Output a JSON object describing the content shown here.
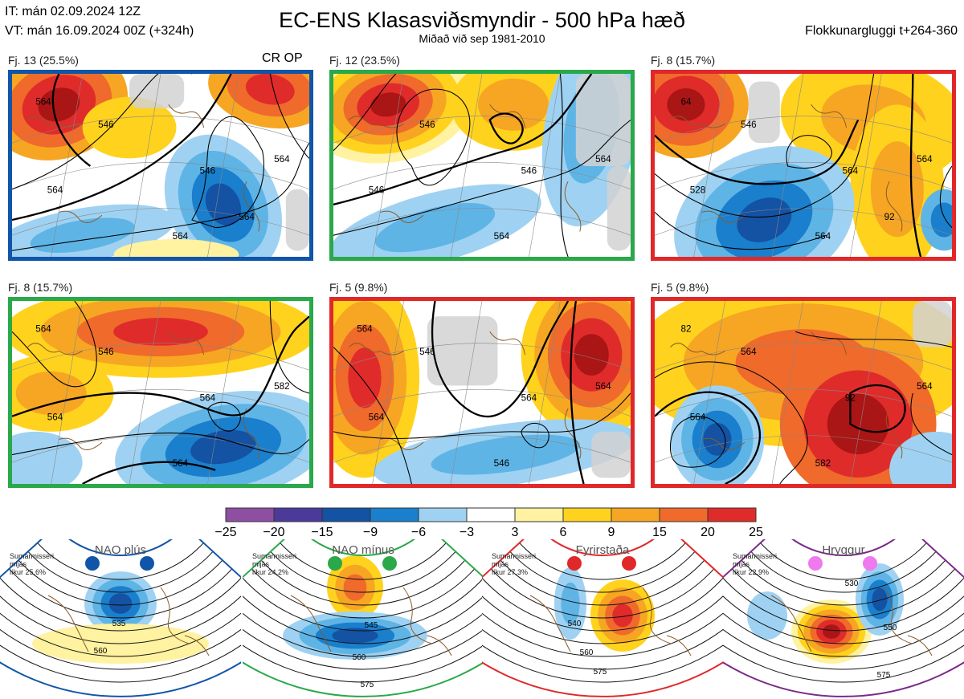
{
  "header": {
    "it_line": "IT: mán 02.09.2024 12Z",
    "vt_line": "VT: mán 16.09.2024 00Z  (+324h)",
    "title": "EC-ENS Klasasviðsmyndir - 500 hPa hæð",
    "subtitle": "Miðað við sep 1981-2010",
    "window": "Flokkunargluggi t+264-360"
  },
  "colors": {
    "scale": [
      "#8e4fa3",
      "#4c3a9a",
      "#1452a3",
      "#1a7fcc",
      "#5fb4e6",
      "#9fd2f2",
      "#ffffff",
      "#fff2a0",
      "#ffd21e",
      "#f6a623",
      "#ef6a2b",
      "#e02b2b",
      "#aa1515"
    ],
    "land": "#d2d2d2",
    "coast": "#8a5a2a"
  },
  "clusters": [
    {
      "label": "Fj. 13 (25.5%)",
      "tag": "CR OP",
      "border_color": "#1155a8",
      "contour_labels": [
        "564",
        "546",
        "564",
        "564",
        "546",
        "564",
        "564"
      ]
    },
    {
      "label": "Fj. 12 (23.5%)",
      "tag": "",
      "border_color": "#2aa84a",
      "contour_labels": [
        "546",
        "546",
        "564",
        "564",
        "546"
      ]
    },
    {
      "label": "Fj. 8 (15.7%)",
      "tag": "",
      "border_color": "#e0282a",
      "contour_labels": [
        "528",
        "546",
        "564",
        "564",
        "564",
        "64",
        "92"
      ]
    },
    {
      "label": "Fj. 8 (15.7%)",
      "tag": "",
      "border_color": "#2aa84a",
      "contour_labels": [
        "564",
        "546",
        "564",
        "582",
        "564",
        "564"
      ]
    },
    {
      "label": "Fj. 5 (9.8%)",
      "tag": "",
      "border_color": "#e0282a",
      "contour_labels": [
        "564",
        "546",
        "546",
        "564",
        "564",
        "564"
      ]
    },
    {
      "label": "Fj. 5 (9.8%)",
      "tag": "",
      "border_color": "#e0282a",
      "contour_labels": [
        "564",
        "564",
        "582",
        "564",
        "92",
        "82"
      ]
    }
  ],
  "colorbar": {
    "ticks": [
      "−25",
      "−20",
      "−15",
      "−9",
      "−6",
      "−3",
      "3",
      "6",
      "9",
      "15",
      "20",
      "25"
    ]
  },
  "regimes": [
    {
      "name": "NAO plús",
      "note": [
        "Sumarmisseri",
        "mijás",
        "líkur 25,6%"
      ],
      "color": "#1155a8",
      "dot_color": "#1155a8",
      "contour_labels": [
        "535",
        "560"
      ]
    },
    {
      "name": "NAO mínus",
      "note": [
        "Sumarmisseri",
        "mijás",
        "líkur 24,2%"
      ],
      "color": "#2aa84a",
      "dot_color": "#2aa84a",
      "contour_labels": [
        "545",
        "560",
        "575"
      ]
    },
    {
      "name": "Fyrirstaða",
      "note": [
        "Sumarmisseri",
        "mijás",
        "líkur 27,3%"
      ],
      "color": "#e0282a",
      "dot_color": "#e0282a",
      "contour_labels": [
        "540",
        "560",
        "575"
      ]
    },
    {
      "name": "Hryggur",
      "note": [
        "Sumarmisseri",
        "mijás",
        "líkur 22,9%"
      ],
      "color": "#7a2a8a",
      "dot_color": "#ee7aee",
      "contour_labels": [
        "530",
        "550",
        "575"
      ]
    }
  ]
}
